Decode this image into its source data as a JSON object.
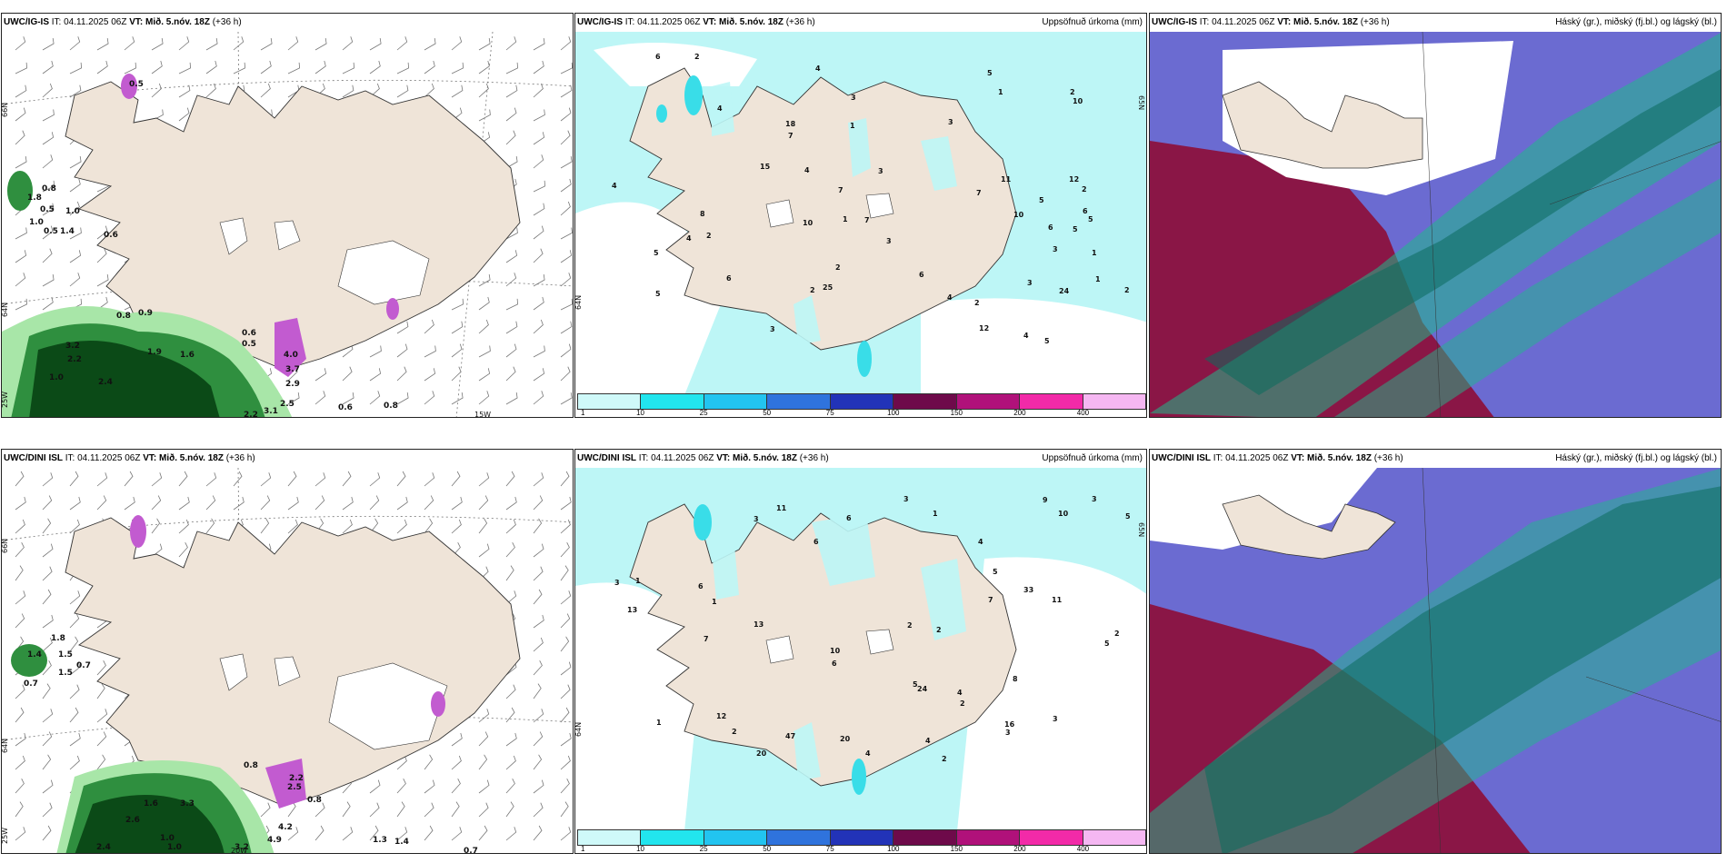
{
  "panels": [
    {
      "model": "UWC/IG-IS",
      "it": "IT: 04.11.2025 06Z",
      "vt_label": "VT: Mið. 5.nóv. 18Z",
      "lead": "(+36 h)",
      "right_title": "",
      "lat_labels": [
        "66N",
        "64N",
        "25W"
      ],
      "lon_labels": [
        "15W"
      ],
      "values": [
        "0.5",
        "0.8",
        "1.8",
        "0.5",
        "1.0",
        "1.0",
        "0.5",
        "1.4",
        "0.6",
        "0.8",
        "0.9",
        "0.6",
        "0.5",
        "3.2",
        "2.2",
        "1.0",
        "2.4",
        "1.9",
        "1.6",
        "4.0",
        "3.7",
        "2.9",
        "0.6",
        "0.8",
        "3.1",
        "2.5",
        "2.2"
      ]
    },
    {
      "model": "UWC/IG-IS",
      "it": "IT: 04.11.2025 06Z",
      "vt_label": "VT: Mið. 5.nóv. 18Z",
      "lead": "(+36 h)",
      "right_title": "Uppsöfnuð úrkoma (mm)",
      "lat_labels": [
        "65N",
        "64N"
      ],
      "values": [
        "3",
        "2",
        "10",
        "6",
        "4",
        "24",
        "4",
        "8",
        "6",
        "5",
        "3",
        "1",
        "2",
        "5",
        "6",
        "7",
        "5",
        "4",
        "3",
        "3",
        "7",
        "2",
        "1",
        "3",
        "5",
        "7",
        "2",
        "10",
        "6",
        "7",
        "12",
        "15",
        "11",
        "25",
        "4",
        "5",
        "6",
        "4",
        "2",
        "3",
        "10",
        "2",
        "4",
        "1",
        "18",
        "12",
        "5",
        "1",
        "2",
        "4",
        "1",
        "3",
        "5",
        "2"
      ],
      "colorbar": {
        "ticks": [
          "1",
          "10",
          "25",
          "50",
          "75",
          "100",
          "150",
          "200",
          "400"
        ],
        "colors": [
          "#cff9f9",
          "#22e5ee",
          "#22c4f0",
          "#2f73dd",
          "#2233b8",
          "#6e0a4a",
          "#b0117a",
          "#f22aa8",
          "#f5b7f2"
        ]
      }
    },
    {
      "model": "UWC/IG-IS",
      "it": "IT: 04.11.2025 06Z",
      "vt_label": "VT: Mið. 5.nóv. 18Z",
      "lead": "(+36 h)",
      "right_title": "Háský (gr.), miðský (fj.bl.) og lágský (bl.)"
    },
    {
      "model": "UWC/DINI ISL",
      "it": "IT: 04.11.2025 06Z",
      "vt_label": "VT: Mið. 5.nóv. 18Z",
      "lead": "(+36 h)",
      "right_title": "",
      "lat_labels": [
        "66N",
        "64N",
        "25W"
      ],
      "lon_labels": [
        "20W"
      ],
      "values": [
        "1.8",
        "1.4",
        "1.5",
        "0.7",
        "0.7",
        "1.5",
        "0.8",
        "2.2",
        "0.8",
        "1.6",
        "3.3",
        "2.6",
        "1.0",
        "2.4",
        "1.0",
        "3.2",
        "4.9",
        "4.2",
        "1.3",
        "1.4",
        "0.7",
        "2.5"
      ]
    },
    {
      "model": "UWC/DINI ISL",
      "it": "IT: 04.11.2025 06Z",
      "vt_label": "VT: Mið. 5.nóv. 18Z",
      "lead": "(+36 h)",
      "right_title": "Uppsöfnuð úrkoma (mm)",
      "lat_labels": [
        "65N",
        "64N"
      ],
      "values": [
        "2",
        "3",
        "12",
        "6",
        "33",
        "4",
        "5",
        "13",
        "6",
        "2",
        "1",
        "3",
        "10",
        "5",
        "7",
        "9",
        "13",
        "10",
        "8",
        "11",
        "16",
        "24",
        "20",
        "3",
        "2",
        "5",
        "7",
        "1",
        "4",
        "6",
        "2",
        "3",
        "4",
        "47",
        "11",
        "20",
        "3",
        "1",
        "2",
        "4",
        "6",
        "2",
        "5",
        "3",
        "1"
      ],
      "colorbar": {
        "ticks": [
          "1",
          "10",
          "25",
          "50",
          "75",
          "100",
          "150",
          "200",
          "400"
        ],
        "colors": [
          "#cff9f9",
          "#22e5ee",
          "#22c4f0",
          "#2f73dd",
          "#2233b8",
          "#6e0a4a",
          "#b0117a",
          "#f22aa8",
          "#f5b7f2"
        ]
      }
    },
    {
      "model": "UWC/DINI ISL",
      "it": "IT: 04.11.2025 06Z",
      "vt_label": "VT: Mið. 5.nóv. 18Z",
      "lead": "(+36 h)",
      "right_title": "Háský (gr.), miðský (fj.bl.) og lágský (bl.)"
    }
  ],
  "colors": {
    "land": "#efe4d8",
    "precip_light": "#bdf6f6",
    "precip_mid": "#39dde8",
    "snow_green_dark": "#0b4a17",
    "snow_green_mid": "#2f8f3f",
    "snow_green_light": "#a8e6a8",
    "wet_purple": "#c25bd0",
    "cloud_high": "#1fb98b",
    "cloud_mid": "#6b6bd1",
    "cloud_low": "#8a1646",
    "cloud_white": "#ffffff"
  }
}
